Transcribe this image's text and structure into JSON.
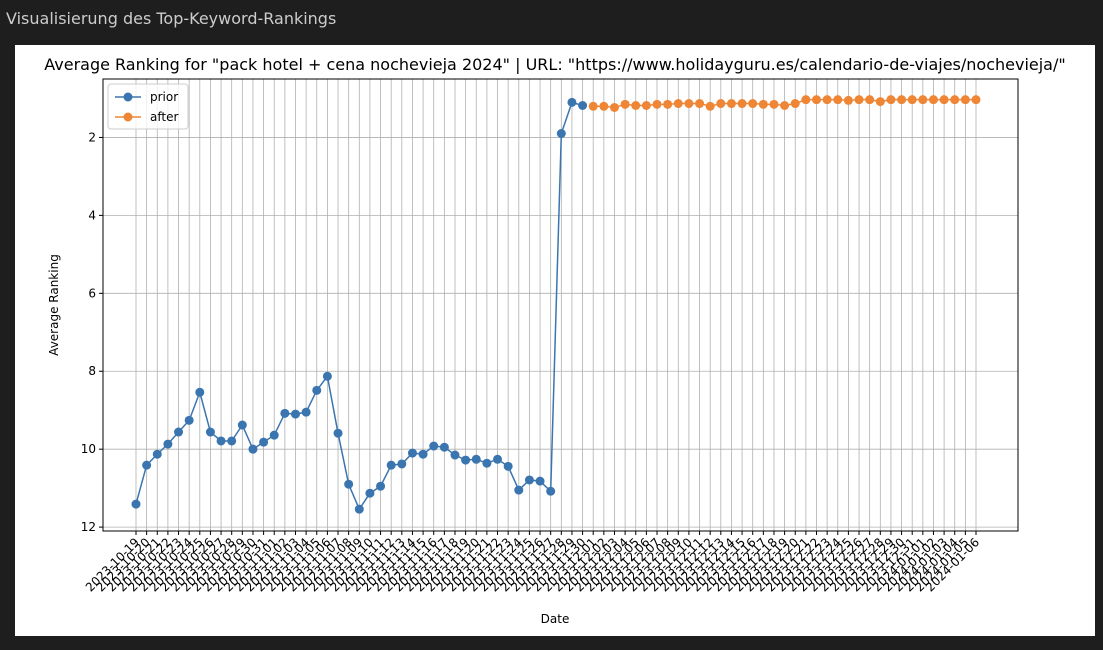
{
  "header": {
    "title": "Visualisierung des Top-Keyword-Rankings"
  },
  "chart_data": {
    "type": "line",
    "title": "Average Ranking for \"pack hotel + cena nochevieja 2024\" | URL: \"https://www.holidayguru.es/calendario-de-viajes/nochevieja/\"",
    "x_label": "Date",
    "y_label": "Average Ranking",
    "categories": [
      "2023-10-19",
      "2023-10-20",
      "2023-10-21",
      "2023-10-22",
      "2023-10-23",
      "2023-10-24",
      "2023-10-25",
      "2023-10-26",
      "2023-10-27",
      "2023-10-28",
      "2023-10-29",
      "2023-10-30",
      "2023-10-31",
      "2023-11-01",
      "2023-11-02",
      "2023-11-03",
      "2023-11-04",
      "2023-11-05",
      "2023-11-06",
      "2023-11-07",
      "2023-11-08",
      "2023-11-09",
      "2023-11-10",
      "2023-11-11",
      "2023-11-12",
      "2023-11-13",
      "2023-11-14",
      "2023-11-15",
      "2023-11-16",
      "2023-11-17",
      "2023-11-18",
      "2023-11-19",
      "2023-11-20",
      "2023-11-21",
      "2023-11-22",
      "2023-11-23",
      "2023-11-24",
      "2023-11-25",
      "2023-11-26",
      "2023-11-27",
      "2023-11-28",
      "2023-11-29",
      "2023-11-30",
      "2023-12-01",
      "2023-12-02",
      "2023-12-03",
      "2023-12-04",
      "2023-12-05",
      "2023-12-06",
      "2023-12-07",
      "2023-12-08",
      "2023-12-09",
      "2023-12-10",
      "2023-12-11",
      "2023-12-12",
      "2023-12-13",
      "2023-12-14",
      "2023-12-15",
      "2023-12-16",
      "2023-12-17",
      "2023-12-18",
      "2023-12-19",
      "2023-12-20",
      "2023-12-21",
      "2023-12-22",
      "2023-12-23",
      "2023-12-24",
      "2023-12-25",
      "2023-12-26",
      "2023-12-27",
      "2023-12-28",
      "2023-12-29",
      "2023-12-30",
      "2023-12-31",
      "2024-01-01",
      "2024-01-02",
      "2024-01-03",
      "2024-01-04",
      "2024-01-05",
      "2024-01-06"
    ],
    "series": [
      {
        "name": "prior",
        "color": "#3b75af",
        "values": [
          11.41,
          10.41,
          10.13,
          9.87,
          9.56,
          9.26,
          8.54,
          9.56,
          9.79,
          9.79,
          9.38,
          10.0,
          9.82,
          9.64,
          9.08,
          9.1,
          9.05,
          8.49,
          8.13,
          9.59,
          10.9,
          11.54,
          11.13,
          10.95,
          10.41,
          10.38,
          10.1,
          10.13,
          9.92,
          9.95,
          10.15,
          10.28,
          10.26,
          10.36,
          10.26,
          10.44,
          11.05,
          10.79,
          10.82,
          11.08,
          1.9,
          1.1,
          1.18,
          null,
          null,
          null,
          null,
          null,
          null,
          null,
          null,
          null,
          null,
          null,
          null,
          null,
          null,
          null,
          null,
          null,
          null,
          null,
          null,
          null,
          null,
          null,
          null,
          null,
          null,
          null,
          null,
          null,
          null,
          null,
          null,
          null,
          null,
          null,
          null,
          null
        ]
      },
      {
        "name": "after",
        "color": "#ef8636",
        "values": [
          null,
          null,
          null,
          null,
          null,
          null,
          null,
          null,
          null,
          null,
          null,
          null,
          null,
          null,
          null,
          null,
          null,
          null,
          null,
          null,
          null,
          null,
          null,
          null,
          null,
          null,
          null,
          null,
          null,
          null,
          null,
          null,
          null,
          null,
          null,
          null,
          null,
          null,
          null,
          null,
          null,
          null,
          null,
          1.2,
          1.2,
          1.23,
          1.15,
          1.18,
          1.18,
          1.15,
          1.15,
          1.13,
          1.13,
          1.13,
          1.2,
          1.13,
          1.13,
          1.13,
          1.13,
          1.15,
          1.15,
          1.18,
          1.13,
          1.03,
          1.03,
          1.03,
          1.03,
          1.05,
          1.03,
          1.03,
          1.08,
          1.03,
          1.03,
          1.03,
          1.03,
          1.03,
          1.03,
          1.03,
          1.03,
          1.03
        ]
      }
    ],
    "ylim": [
      0.5,
      12.1
    ],
    "y_inverted": true,
    "yticks": [
      2,
      4,
      6,
      8,
      10,
      12
    ],
    "grid": true,
    "legend": "upper left"
  }
}
